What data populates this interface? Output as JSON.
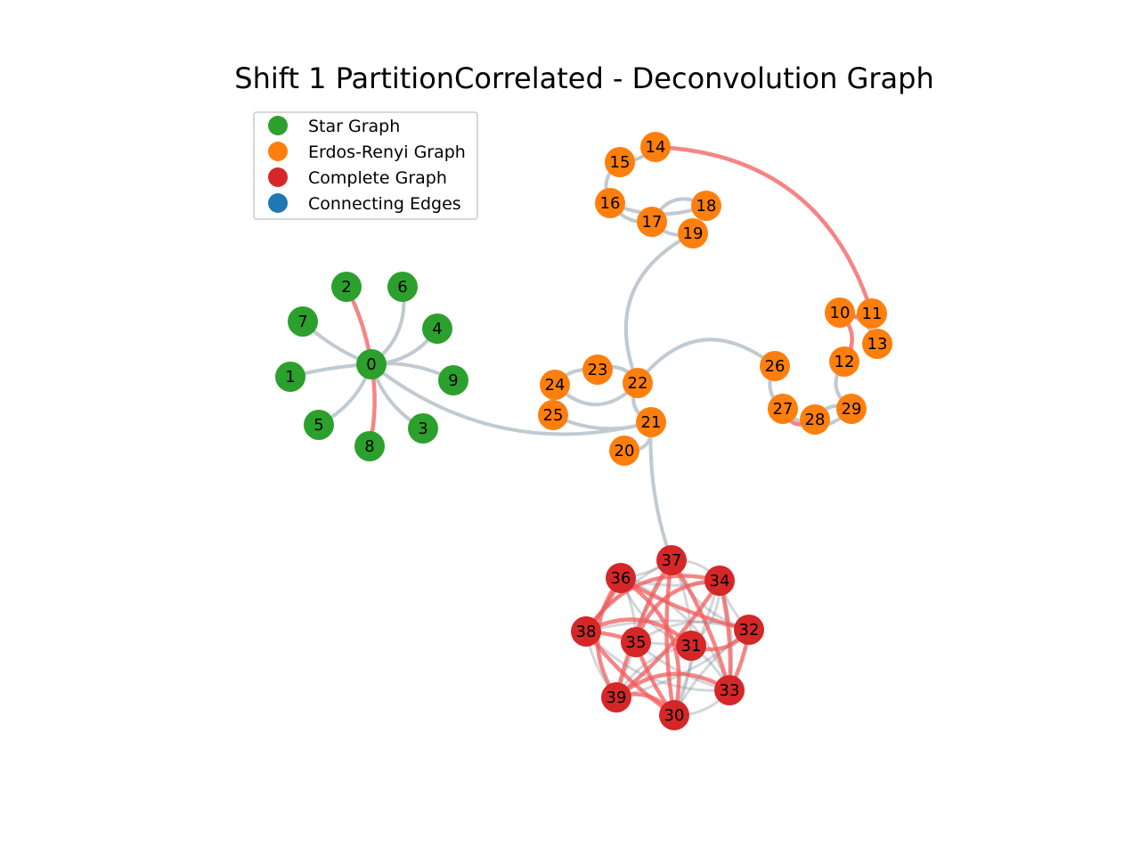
{
  "title": "Shift 1 PartitionCorrelated - Deconvolution Graph",
  "legend": [
    {
      "label": "Star Graph",
      "color": "#2ca02c"
    },
    {
      "label": "Erdos-Renyi Graph",
      "color": "#ff7f0e"
    },
    {
      "label": "Complete Graph",
      "color": "#d62728"
    },
    {
      "label": "Connecting Edges",
      "color": "#1f77b4"
    }
  ],
  "colors": {
    "star": "#2ca02c",
    "erdos": "#ff7f0e",
    "complete": "#d62728",
    "edge_gray": "#b7c1c9",
    "edge_red": "#f25c5c",
    "edge_dark": "#7d8b96"
  },
  "nodes": [
    {
      "id": "0",
      "group": "star"
    },
    {
      "id": "1",
      "group": "star"
    },
    {
      "id": "2",
      "group": "star"
    },
    {
      "id": "3",
      "group": "star"
    },
    {
      "id": "4",
      "group": "star"
    },
    {
      "id": "5",
      "group": "star"
    },
    {
      "id": "6",
      "group": "star"
    },
    {
      "id": "7",
      "group": "star"
    },
    {
      "id": "8",
      "group": "star"
    },
    {
      "id": "9",
      "group": "star"
    },
    {
      "id": "10",
      "group": "erdos"
    },
    {
      "id": "11",
      "group": "erdos"
    },
    {
      "id": "12",
      "group": "erdos"
    },
    {
      "id": "13",
      "group": "erdos"
    },
    {
      "id": "14",
      "group": "erdos"
    },
    {
      "id": "15",
      "group": "erdos"
    },
    {
      "id": "16",
      "group": "erdos"
    },
    {
      "id": "17",
      "group": "erdos"
    },
    {
      "id": "18",
      "group": "erdos"
    },
    {
      "id": "19",
      "group": "erdos"
    },
    {
      "id": "20",
      "group": "erdos"
    },
    {
      "id": "21",
      "group": "erdos"
    },
    {
      "id": "22",
      "group": "erdos"
    },
    {
      "id": "23",
      "group": "erdos"
    },
    {
      "id": "24",
      "group": "erdos"
    },
    {
      "id": "25",
      "group": "erdos"
    },
    {
      "id": "26",
      "group": "erdos"
    },
    {
      "id": "27",
      "group": "erdos"
    },
    {
      "id": "28",
      "group": "erdos"
    },
    {
      "id": "29",
      "group": "erdos"
    },
    {
      "id": "30",
      "group": "complete"
    },
    {
      "id": "31",
      "group": "complete"
    },
    {
      "id": "32",
      "group": "complete"
    },
    {
      "id": "33",
      "group": "complete"
    },
    {
      "id": "34",
      "group": "complete"
    },
    {
      "id": "35",
      "group": "complete"
    },
    {
      "id": "36",
      "group": "complete"
    },
    {
      "id": "37",
      "group": "complete"
    },
    {
      "id": "38",
      "group": "complete"
    },
    {
      "id": "39",
      "group": "complete"
    }
  ]
}
